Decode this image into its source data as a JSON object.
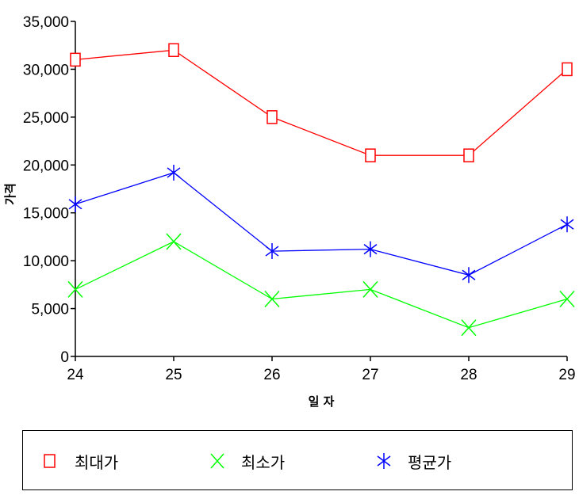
{
  "chart_data": {
    "type": "line",
    "xlabel": "일 자",
    "ylabel": "가격",
    "x": [
      24,
      25,
      26,
      27,
      28,
      29
    ],
    "ylim": [
      0,
      35000
    ],
    "yticks": [
      "0",
      "5,000",
      "10,000",
      "15,000",
      "20,000",
      "25,000",
      "30,000",
      "35,000"
    ],
    "ytick_values": [
      0,
      5000,
      10000,
      15000,
      20000,
      25000,
      30000,
      35000
    ],
    "series": [
      {
        "name": "최대가",
        "color": "#ff0000",
        "marker": "square",
        "values": [
          31000,
          32000,
          25000,
          21000,
          21000,
          30000
        ]
      },
      {
        "name": "최소가",
        "color": "#00ff00",
        "marker": "x",
        "values": [
          7000,
          12000,
          6000,
          7000,
          3000,
          6000
        ]
      },
      {
        "name": "평균가",
        "color": "#0000ff",
        "marker": "asterisk",
        "values": [
          15900,
          19200,
          11000,
          11200,
          8500,
          13800
        ]
      }
    ],
    "legend_position": "bottom",
    "grid": false
  }
}
